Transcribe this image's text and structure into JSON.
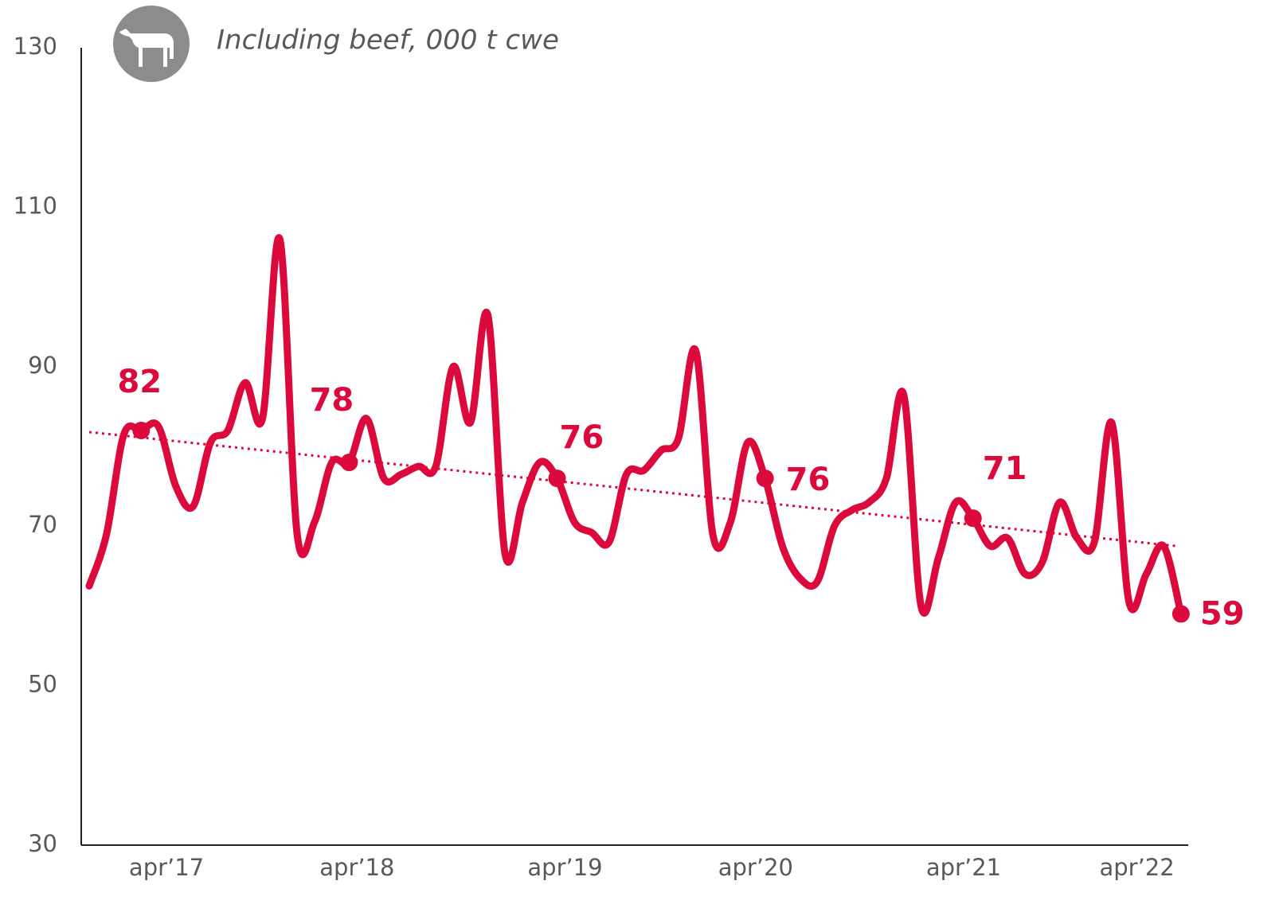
{
  "chart_data": {
    "type": "line",
    "subtitle": "Including beef, 000 t cwe",
    "categories": [
      null,
      null,
      null,
      null,
      "apr’17",
      null,
      null,
      null,
      null,
      null,
      null,
      null,
      null,
      null,
      null,
      "apr’18",
      null,
      null,
      null,
      null,
      null,
      null,
      null,
      null,
      null,
      null,
      null,
      "apr’19",
      null,
      null,
      null,
      null,
      null,
      null,
      null,
      null,
      null,
      null,
      "apr’20",
      null,
      null,
      null,
      null,
      null,
      null,
      null,
      null,
      null,
      null,
      null,
      "apr’21",
      null,
      null,
      null,
      null,
      null,
      null,
      null,
      null,
      null,
      "apr’22",
      null,
      null,
      null
    ],
    "series": [
      {
        "name": null,
        "color": "#dc0a3c",
        "values": [
          62.5,
          69,
          81.5,
          82,
          82.5,
          75,
          72.5,
          80.5,
          82,
          88,
          83.5,
          106,
          69,
          70.5,
          78,
          78,
          83.5,
          76,
          76.5,
          77.5,
          77.5,
          90,
          83,
          96.5,
          66.5,
          73,
          78,
          76,
          70.5,
          69.2,
          68,
          76.5,
          77,
          79.5,
          81,
          92,
          68.8,
          70.5,
          80.5,
          76,
          67.5,
          63.5,
          63,
          70,
          72,
          73,
          76,
          86.5,
          60,
          66,
          73,
          71,
          67.5,
          68.5,
          64,
          65.5,
          73,
          68.5,
          68,
          83,
          60.5,
          64,
          67.5,
          59
        ],
        "value_labels": [
          null,
          null,
          null,
          "82",
          null,
          null,
          null,
          null,
          null,
          null,
          null,
          null,
          null,
          null,
          null,
          "78",
          null,
          null,
          null,
          null,
          null,
          null,
          null,
          null,
          null,
          null,
          null,
          "76",
          null,
          null,
          null,
          null,
          null,
          null,
          null,
          null,
          null,
          null,
          null,
          "76",
          null,
          null,
          null,
          null,
          null,
          null,
          null,
          null,
          null,
          null,
          null,
          "71",
          null,
          null,
          null,
          null,
          null,
          null,
          null,
          null,
          null,
          null,
          null,
          "59"
        ]
      }
    ],
    "trend": {
      "values": [
        81.8,
        67.5
      ],
      "color": "#dc0a3c",
      "style": "dotted"
    },
    "ylim": [
      30,
      130
    ],
    "yticks": [
      30,
      50,
      70,
      90,
      110,
      130
    ],
    "grid": false
  }
}
